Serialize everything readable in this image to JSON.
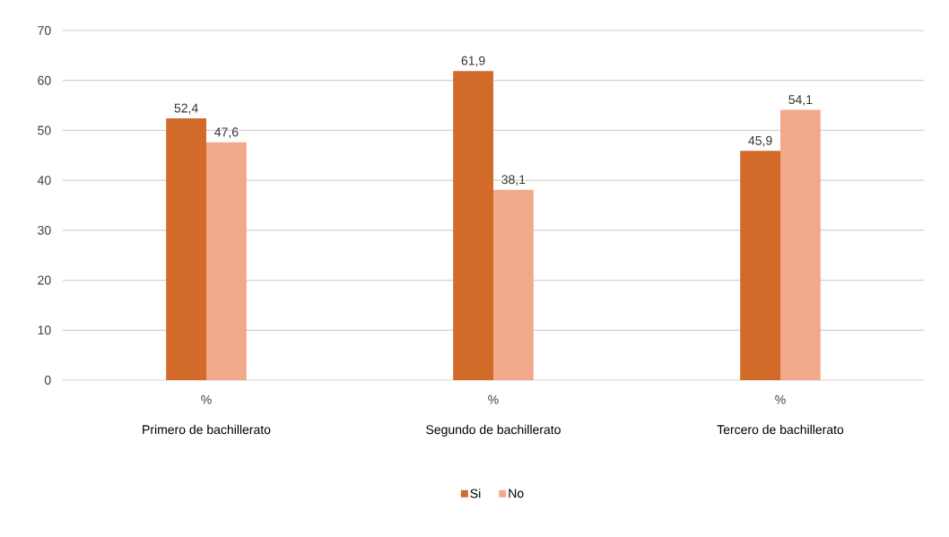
{
  "chart_data": {
    "type": "bar",
    "categories": [
      "Primero de bachillerato",
      "Segundo de bachillerato",
      "Tercero de bachillerato"
    ],
    "series": [
      {
        "name": "Si",
        "color": "#d26b2a",
        "values": [
          52.4,
          61.9,
          45.9
        ],
        "value_labels": [
          "52,4",
          "61,9",
          "45,9"
        ]
      },
      {
        "name": "No",
        "color": "#f2a88a",
        "values": [
          47.6,
          38.1,
          54.1
        ],
        "value_labels": [
          "47,6",
          "38,1",
          "54,1"
        ]
      }
    ],
    "annotations": [
      "%",
      "%",
      "%"
    ],
    "ylim": [
      0,
      70
    ],
    "yticks": [
      0,
      10,
      20,
      30,
      40,
      50,
      60,
      70
    ],
    "grid": "y",
    "legend": "bottom"
  }
}
